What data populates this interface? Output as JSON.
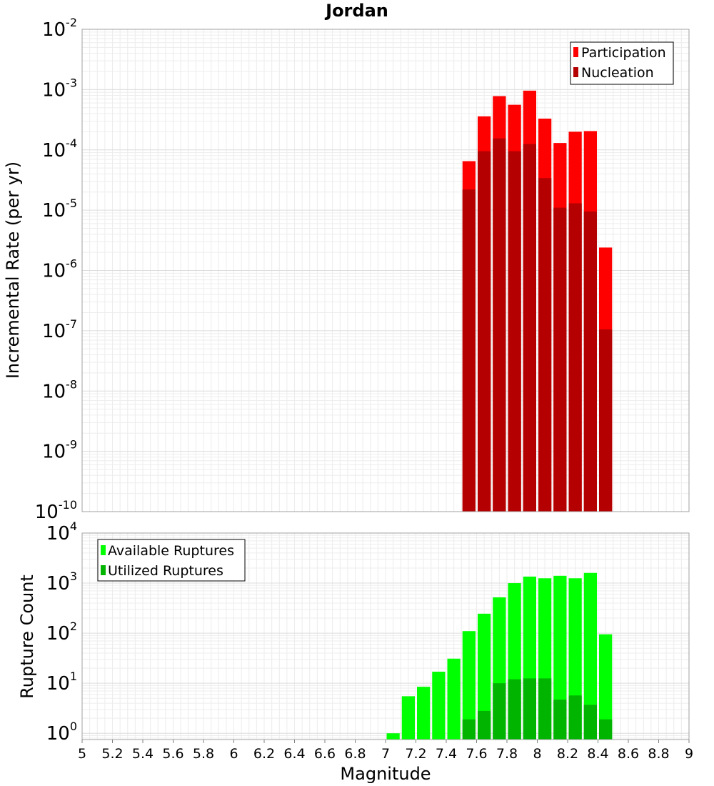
{
  "chart_data": [
    {
      "type": "bar",
      "title": "Jordan",
      "xlabel": "Magnitude",
      "ylabel": "Incremental Rate (per yr)",
      "yscale": "log",
      "xlim": [
        5,
        9
      ],
      "ylim": [
        1e-10,
        0.01
      ],
      "grid": true,
      "legend_position": "top-right",
      "bin_width": 0.1,
      "x": [
        7.55,
        7.65,
        7.75,
        7.85,
        7.95,
        8.05,
        8.15,
        8.25,
        8.35,
        8.45
      ],
      "series": [
        {
          "name": "Participation",
          "color": "#ff0000",
          "values": [
            6.5e-05,
            0.00036,
            0.00078,
            0.00056,
            0.00096,
            0.00033,
            0.00013,
            0.0002,
            0.000205,
            2.4e-06
          ]
        },
        {
          "name": "Nucleation",
          "color": "#b40000",
          "values": [
            2.2e-05,
            9.5e-05,
            0.000155,
            9.5e-05,
            0.000125,
            3.4e-05,
            1.1e-05,
            1.3e-05,
            9.5e-06,
            1.05e-07
          ]
        }
      ],
      "yticks": [
        {
          "base": "10",
          "exp": "-10"
        },
        {
          "base": "10",
          "exp": "-9"
        },
        {
          "base": "10",
          "exp": "-8"
        },
        {
          "base": "10",
          "exp": "-7"
        },
        {
          "base": "10",
          "exp": "-6"
        },
        {
          "base": "10",
          "exp": "-5"
        },
        {
          "base": "10",
          "exp": "-4"
        },
        {
          "base": "10",
          "exp": "-3"
        },
        {
          "base": "10",
          "exp": "-2"
        }
      ]
    },
    {
      "type": "bar",
      "xlabel": "Magnitude",
      "ylabel": "Rupture Count",
      "yscale": "log",
      "xlim": [
        5,
        9
      ],
      "ylim": [
        0.75,
        10000.0
      ],
      "grid": true,
      "legend_position": "top-left",
      "bin_width": 0.1,
      "x": [
        7.05,
        7.15,
        7.25,
        7.35,
        7.45,
        7.55,
        7.65,
        7.75,
        7.85,
        7.95,
        8.05,
        8.15,
        8.25,
        8.35,
        8.45
      ],
      "series": [
        {
          "name": "Available Ruptures",
          "color": "#00ff00",
          "values": [
            1,
            5.5,
            8.5,
            17,
            31,
            110,
            245,
            520,
            1000,
            1350,
            1250,
            1400,
            1250,
            1600,
            95
          ]
        },
        {
          "name": "Utilized Ruptures",
          "color": "#00b400",
          "values": [
            null,
            null,
            null,
            null,
            null,
            1.9,
            2.8,
            10,
            12,
            12.5,
            12.5,
            4.7,
            5.7,
            3.7,
            1.9
          ]
        }
      ],
      "yticks": [
        {
          "base": "10",
          "exp": "0"
        },
        {
          "base": "10",
          "exp": "1"
        },
        {
          "base": "10",
          "exp": "2"
        },
        {
          "base": "10",
          "exp": "3"
        },
        {
          "base": "10",
          "exp": "4"
        }
      ],
      "xticks": [
        "5",
        "5.2",
        "5.4",
        "5.6",
        "5.8",
        "6",
        "6.2",
        "6.4",
        "6.6",
        "6.8",
        "7",
        "7.2",
        "7.4",
        "7.6",
        "7.8",
        "8",
        "8.2",
        "8.4",
        "8.6",
        "8.8",
        "9"
      ]
    }
  ]
}
